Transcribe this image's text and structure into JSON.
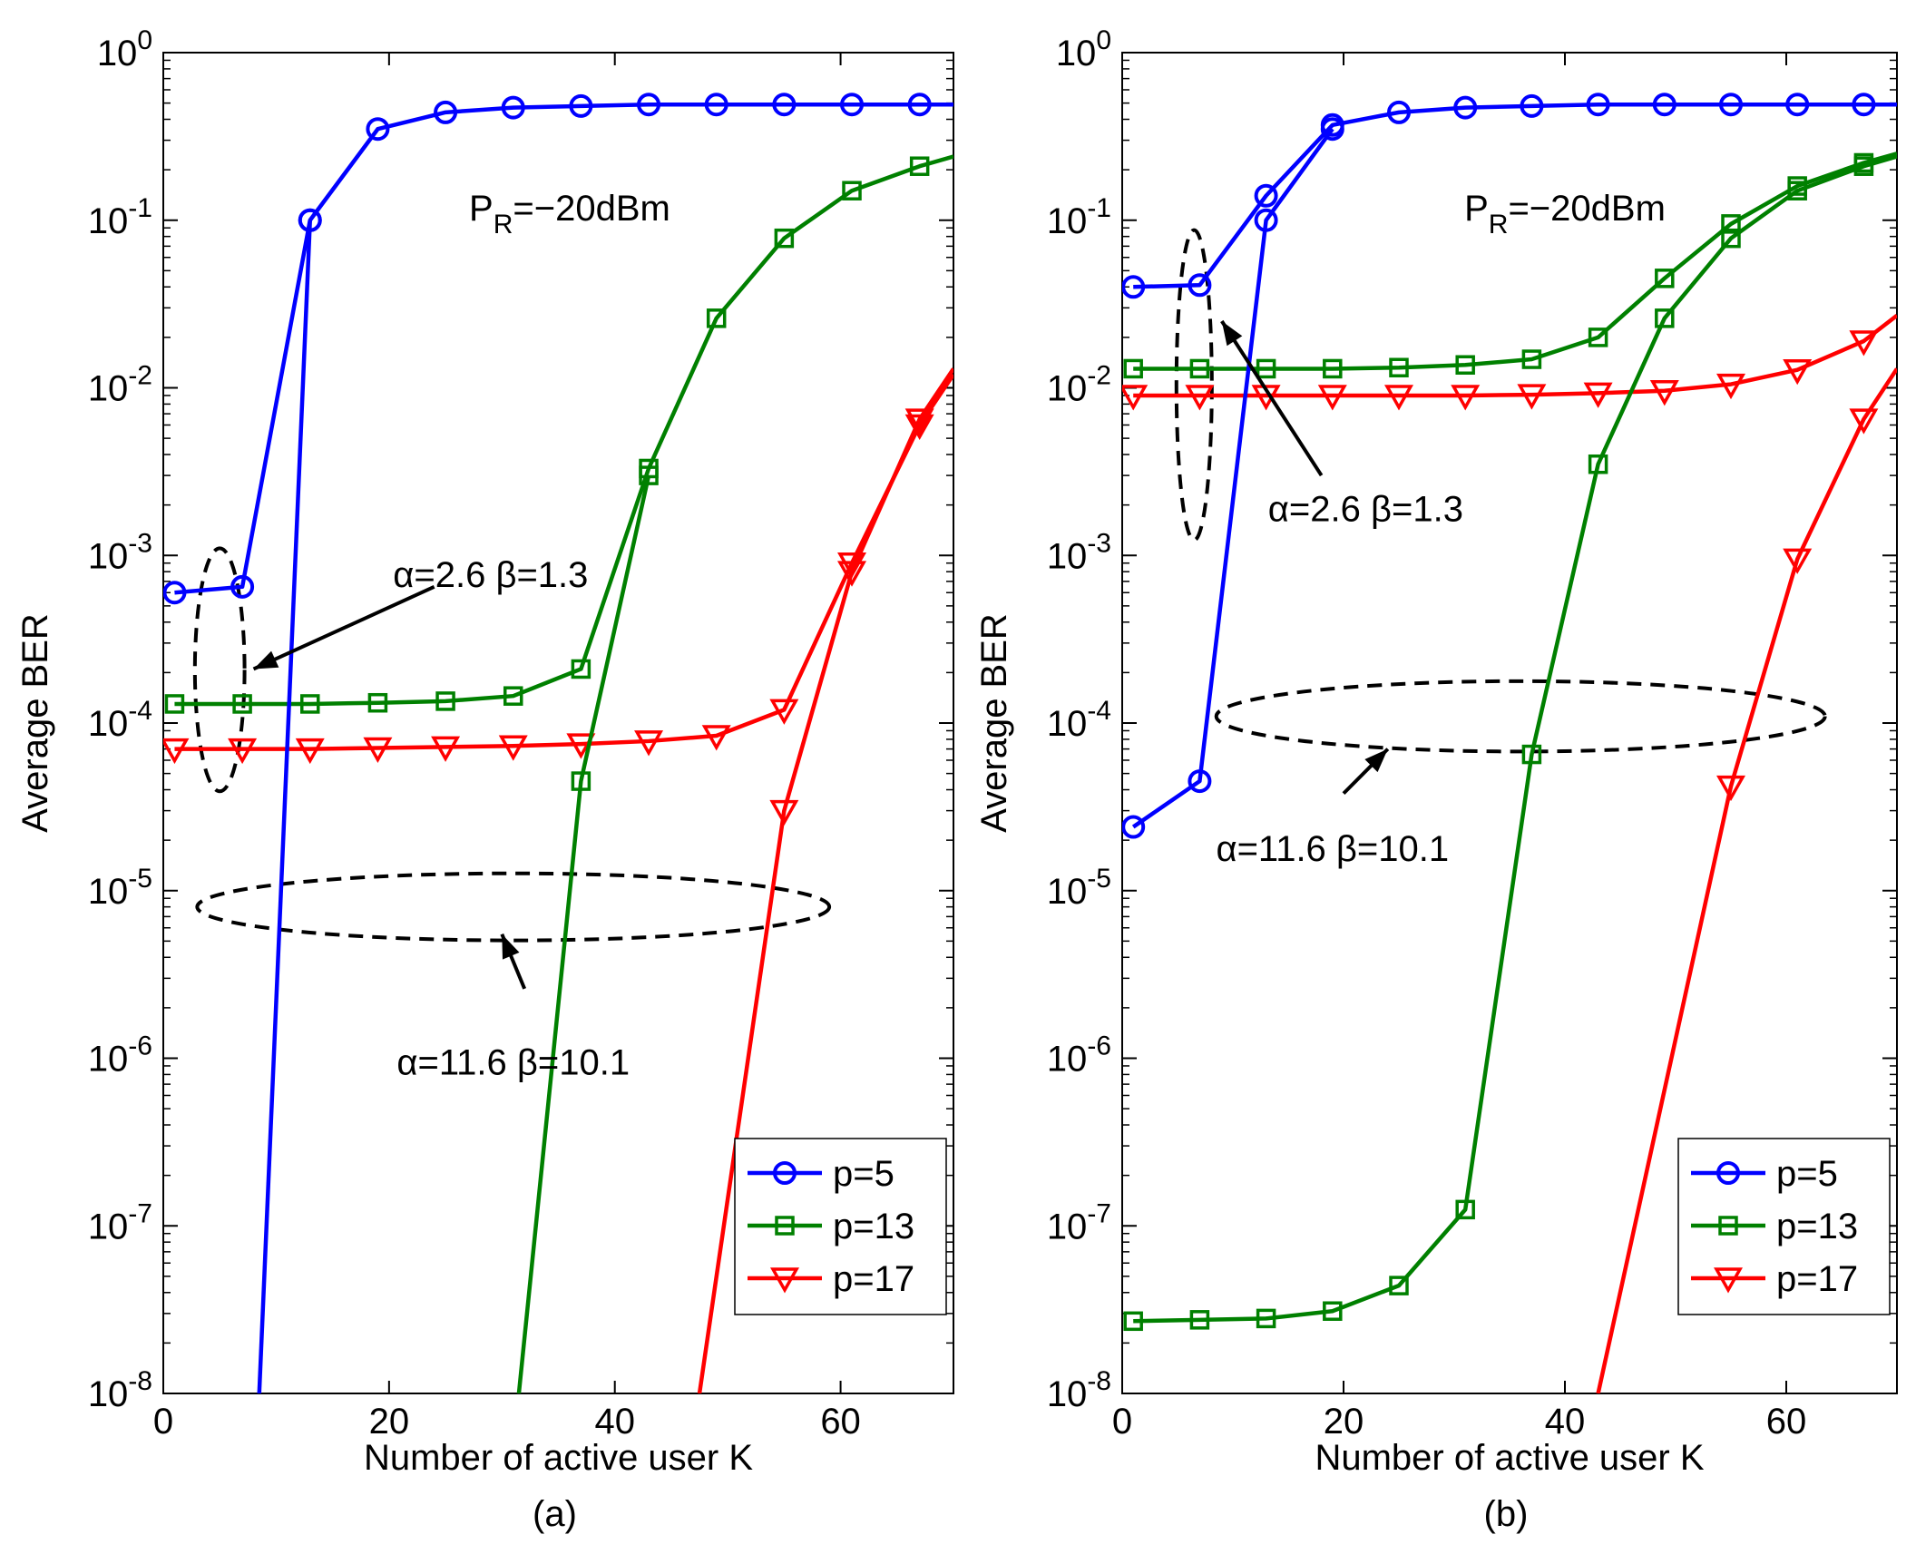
{
  "chart_data": [
    {
      "type": "line",
      "id": "a",
      "caption": "(a)",
      "xlabel": "Number of active user K",
      "ylabel": "Average BER",
      "xlim": [
        0,
        70
      ],
      "ylim": [
        1e-08,
        1
      ],
      "yscale": "log",
      "xticks": [
        0,
        20,
        40,
        60
      ],
      "xtick_labels": [
        "0",
        "20",
        "40",
        "60"
      ],
      "yticks": [
        {
          "base": "10",
          "exp": "0"
        },
        {
          "base": "10",
          "exp": "-1"
        },
        {
          "base": "10",
          "exp": "-2"
        },
        {
          "base": "10",
          "exp": "-3"
        },
        {
          "base": "10",
          "exp": "-4"
        },
        {
          "base": "10",
          "exp": "-5"
        },
        {
          "base": "10",
          "exp": "-6"
        },
        {
          "base": "10",
          "exp": "-7"
        },
        {
          "base": "10",
          "exp": "-8"
        }
      ],
      "power_label": {
        "prefix": "P",
        "sub": "R",
        "suffix": "=−20dBm",
        "x": 36,
        "y": 0.1
      },
      "annotations": [
        {
          "text": "α=2.6 β=1.3",
          "x": 29,
          "y": 0.00065
        },
        {
          "text": "α=11.6 β=10.1",
          "x": 31,
          "y": 8e-07
        }
      ],
      "ellipses": [
        {
          "cx": 5,
          "cy": 0.00022,
          "rx": 2.2,
          "ry_decades_up": 0.7,
          "ry_decades_down": 0.75
        },
        {
          "cx": 31,
          "cy": 8e-06,
          "rx": 28,
          "ry_decades_up": 0.2,
          "ry_decades_down": 0.2
        }
      ],
      "arrows": [
        {
          "from": [
            24,
            0.00065
          ],
          "to": [
            8,
            0.00021
          ]
        },
        {
          "from": [
            32,
            2.6e-06
          ],
          "to": [
            30,
            5.5e-06
          ]
        }
      ],
      "series": [
        {
          "name": "p=5",
          "color": "#0000ff",
          "marker": "circle",
          "x": [
            1,
            7,
            13,
            19,
            25,
            31,
            37,
            43,
            49,
            55,
            61,
            67,
            70
          ],
          "y": [
            0.0006,
            0.00065,
            0.1,
            0.35,
            0.44,
            0.47,
            0.48,
            0.49,
            0.49,
            0.49,
            0.49,
            0.49,
            0.49
          ],
          "marker_count": 12
        },
        {
          "name": "p=13",
          "color": "#008000",
          "marker": "square",
          "x": [
            1,
            7,
            13,
            19,
            25,
            31,
            37,
            43,
            49,
            55,
            61,
            67,
            70
          ],
          "y": [
            0.00013,
            0.00013,
            0.00013,
            0.000132,
            0.000135,
            0.000145,
            0.00021,
            0.0033,
            0.026,
            0.078,
            0.15,
            0.21,
            0.24
          ],
          "marker_count": 12
        },
        {
          "name": "p=17",
          "color": "#ff0000",
          "marker": "triangle-down",
          "x": [
            1,
            7,
            13,
            19,
            25,
            31,
            37,
            43,
            49,
            55,
            61,
            67,
            70
          ],
          "y": [
            7e-05,
            7e-05,
            7e-05,
            7.1e-05,
            7.2e-05,
            7.3e-05,
            7.5e-05,
            7.8e-05,
            8.4e-05,
            0.00012,
            0.0009,
            0.006,
            0.012
          ],
          "marker_count": 12
        },
        {
          "name": "p=5 (α=11.6 β=10.1)",
          "color": "#0000ff",
          "marker": "circle",
          "legend": false,
          "x": [
            8.5,
            13
          ],
          "y": [
            1e-08,
            0.1
          ],
          "marker_count": 1,
          "marker_start": 1
        },
        {
          "name": "p=13 (α=11.6 β=10.1)",
          "color": "#008000",
          "marker": "square",
          "legend": false,
          "x": [
            31.5,
            37,
            43
          ],
          "y": [
            1e-08,
            4.5e-05,
            0.003
          ],
          "marker_count": 2,
          "marker_start": 1
        },
        {
          "name": "p=17 (α=11.6 β=10.1)",
          "color": "#ff0000",
          "marker": "triangle-down",
          "legend": false,
          "x": [
            47.5,
            55,
            61,
            67,
            70
          ],
          "y": [
            1e-08,
            3e-05,
            0.0008,
            0.0065,
            0.013
          ],
          "marker_count": 3,
          "marker_start": 1
        }
      ]
    },
    {
      "type": "line",
      "id": "b",
      "caption": "(b)",
      "xlabel": "Number of active user K",
      "ylabel": "Average BER",
      "xlim": [
        0,
        70
      ],
      "ylim": [
        1e-08,
        1
      ],
      "yscale": "log",
      "xticks": [
        0,
        20,
        40,
        60
      ],
      "xtick_labels": [
        "0",
        "20",
        "40",
        "60"
      ],
      "yticks": [
        {
          "base": "10",
          "exp": "0"
        },
        {
          "base": "10",
          "exp": "-1"
        },
        {
          "base": "10",
          "exp": "-2"
        },
        {
          "base": "10",
          "exp": "-3"
        },
        {
          "base": "10",
          "exp": "-4"
        },
        {
          "base": "10",
          "exp": "-5"
        },
        {
          "base": "10",
          "exp": "-6"
        },
        {
          "base": "10",
          "exp": "-7"
        },
        {
          "base": "10",
          "exp": "-8"
        }
      ],
      "power_label": {
        "prefix": "P",
        "sub": "R",
        "suffix": "=−20dBm",
        "x": 40,
        "y": 0.1
      },
      "annotations": [
        {
          "text": "α=2.6 β=1.3",
          "x": 22,
          "y": 0.0016
        },
        {
          "text": "α=11.6 β=10.1",
          "x": 19,
          "y": 1.5e-05
        }
      ],
      "ellipses": [
        {
          "cx": 6.5,
          "cy": 0.011,
          "rx": 1.6,
          "ry_decades_up": 0.9,
          "ry_decades_down": 0.95
        },
        {
          "cx": 36,
          "cy": 0.0001,
          "rx": 27.5,
          "ry_decades_up": 0.25,
          "ry_decades_down": 0.17
        }
      ],
      "arrows": [
        {
          "from": [
            18,
            0.003
          ],
          "to": [
            9,
            0.025
          ]
        },
        {
          "from": [
            20,
            3.8e-05
          ],
          "to": [
            24,
            7e-05
          ]
        }
      ],
      "series": [
        {
          "name": "p=5",
          "color": "#0000ff",
          "marker": "circle",
          "x": [
            1,
            7,
            13,
            19,
            25,
            31,
            37,
            43,
            49,
            55,
            61,
            67,
            70
          ],
          "y": [
            0.04,
            0.041,
            0.14,
            0.37,
            0.44,
            0.47,
            0.48,
            0.49,
            0.49,
            0.49,
            0.49,
            0.49,
            0.49
          ],
          "marker_count": 12
        },
        {
          "name": "p=13",
          "color": "#008000",
          "marker": "square",
          "x": [
            1,
            7,
            13,
            19,
            25,
            31,
            37,
            43,
            49,
            55,
            61,
            67,
            70
          ],
          "y": [
            0.013,
            0.013,
            0.013,
            0.013,
            0.0132,
            0.0137,
            0.0148,
            0.02,
            0.045,
            0.095,
            0.16,
            0.22,
            0.25
          ],
          "marker_count": 12
        },
        {
          "name": "p=17",
          "color": "#ff0000",
          "marker": "triangle-down",
          "x": [
            1,
            7,
            13,
            19,
            25,
            31,
            37,
            43,
            49,
            55,
            61,
            67,
            70
          ],
          "y": [
            0.009,
            0.009,
            0.009,
            0.009,
            0.009,
            0.009,
            0.0091,
            0.0093,
            0.0096,
            0.0105,
            0.0128,
            0.019,
            0.027
          ],
          "marker_count": 12
        },
        {
          "name": "p=5 (α=11.6 β=10.1)",
          "color": "#0000ff",
          "marker": "circle",
          "legend": false,
          "x": [
            1,
            7,
            13,
            19
          ],
          "y": [
            2.4e-05,
            4.5e-05,
            0.1,
            0.35
          ],
          "marker_count": 4
        },
        {
          "name": "p=13 (α=11.6 β=10.1)",
          "color": "#008000",
          "marker": "square",
          "legend": false,
          "x": [
            1,
            7,
            13,
            19,
            25,
            31,
            37,
            43,
            49,
            55,
            61,
            67,
            70
          ],
          "y": [
            2.7e-08,
            2.75e-08,
            2.8e-08,
            3.1e-08,
            4.4e-08,
            1.25e-07,
            6.5e-05,
            0.0035,
            0.026,
            0.078,
            0.15,
            0.21,
            0.24
          ],
          "marker_count": 12
        },
        {
          "name": "p=17 (α=11.6 β=10.1)",
          "color": "#ff0000",
          "marker": "triangle-down",
          "legend": false,
          "x": [
            43,
            55,
            61,
            67,
            70
          ],
          "y": [
            1e-08,
            4.2e-05,
            0.00095,
            0.0065,
            0.013
          ],
          "marker_count": 3,
          "marker_start": 1
        }
      ]
    }
  ]
}
